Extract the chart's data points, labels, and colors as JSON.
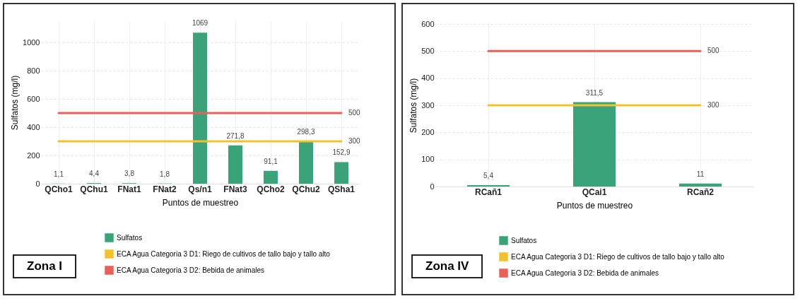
{
  "chart_data": [
    {
      "type": "bar",
      "categories": [
        "QCho1",
        "QChu1",
        "FNat1",
        "FNat2",
        "Qs/n1",
        "FNat3",
        "QCho2",
        "QChu2",
        "QSha1"
      ],
      "xlabel": "Puntos de muestreo",
      "ylabel": "Sulfatos (mg/l)",
      "ylim": [
        0,
        1150
      ],
      "yticks": [
        0,
        200,
        400,
        600,
        800,
        1000
      ],
      "grid": true,
      "legend": "bottom",
      "annotations": [
        "Zona I"
      ],
      "series": [
        {
          "name": "Sulfatos",
          "color": "#3aa37a",
          "values": [
            1.1,
            4.4,
            3.8,
            1.8,
            1069,
            271.8,
            91.1,
            298.3,
            152.9
          ],
          "value_labels": [
            "1,1",
            "4,4",
            "3,8",
            "1,8",
            "1069",
            "271,8",
            "91,1",
            "298,3",
            "152,9"
          ]
        },
        {
          "name": "ECA Agua Categoria 3 D1: Riego de cultivos de tallo bajo y tallo alto",
          "type": "line",
          "color": "#f2c12e",
          "values": [
            300,
            300,
            300,
            300,
            300,
            300,
            300,
            300,
            300
          ],
          "value_labels": [
            null,
            null,
            null,
            null,
            null,
            null,
            null,
            null,
            "300"
          ]
        },
        {
          "name": "ECA Agua Categoria 3 D2: Bebida de animales",
          "type": "line",
          "color": "#e8605a",
          "values": [
            500,
            500,
            500,
            500,
            500,
            500,
            500,
            500,
            500
          ],
          "value_labels": [
            null,
            null,
            null,
            null,
            null,
            null,
            null,
            null,
            "500"
          ]
        }
      ]
    },
    {
      "type": "bar",
      "categories": [
        "RCañ1",
        "QCai1",
        "RCañ2"
      ],
      "xlabel": "Puntos de muestreo",
      "ylabel": "Sulfatos (mg/l)",
      "ylim": [
        0,
        600
      ],
      "yticks": [
        0,
        100,
        200,
        300,
        400,
        500,
        600
      ],
      "grid": true,
      "legend": "bottom",
      "annotations": [
        "Zona IV"
      ],
      "series": [
        {
          "name": "Sulfatos",
          "color": "#3aa37a",
          "values": [
            5.4,
            311.5,
            11
          ],
          "value_labels": [
            "5,4",
            "311,5",
            "11"
          ]
        },
        {
          "name": "ECA Agua Categoria 3 D1: Riego de cultivos de tallo bajo y tallo alto",
          "type": "line",
          "color": "#f2c12e",
          "values": [
            300,
            300,
            300
          ],
          "value_labels": [
            null,
            null,
            "300"
          ]
        },
        {
          "name": "ECA Agua Categoria 3 D2: Bebida de animales",
          "type": "line",
          "color": "#e8605a",
          "values": [
            500,
            500,
            500
          ],
          "value_labels": [
            null,
            null,
            "500"
          ]
        }
      ]
    }
  ]
}
